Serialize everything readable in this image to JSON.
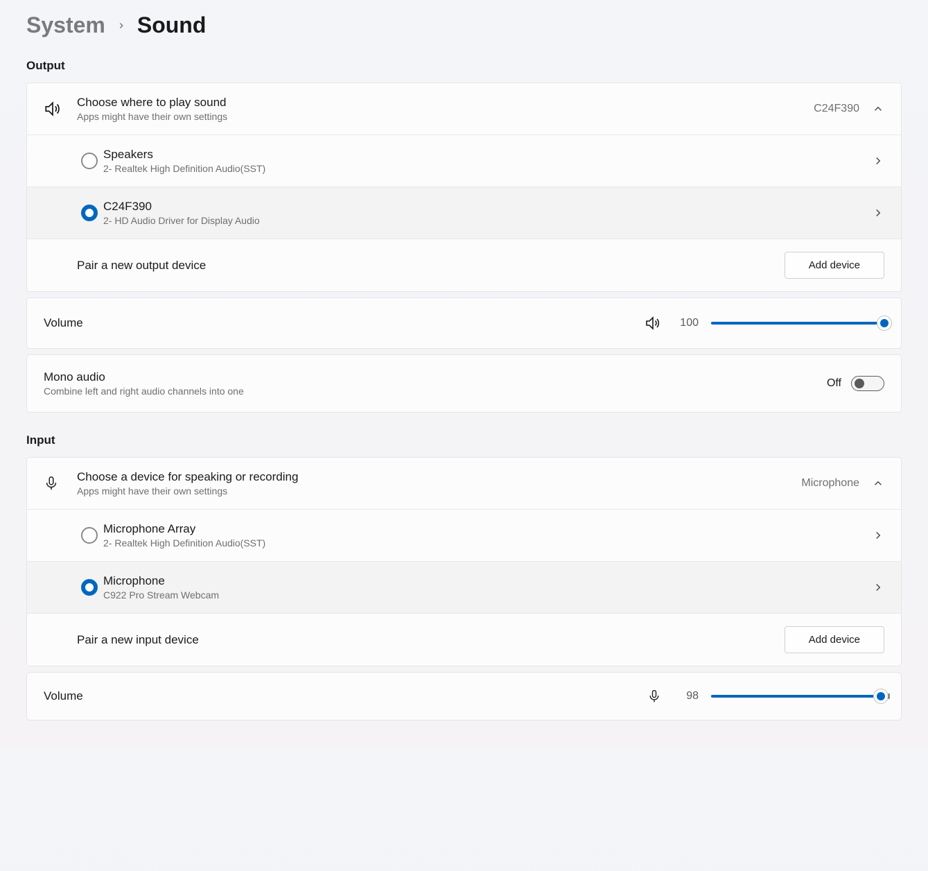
{
  "breadcrumb": {
    "parent": "System",
    "current": "Sound"
  },
  "colors": {
    "accent": "#0067c0",
    "text": "#1a1a1a",
    "text_muted": "#6f6f6f",
    "border": "#e5e5e5",
    "card_bg": "#fcfcfd",
    "selected_bg": "#f3f3f3",
    "page_bg": "#f3f5f9"
  },
  "output": {
    "heading": "Output",
    "choose": {
      "title": "Choose where to play sound",
      "subtitle": "Apps might have their own settings",
      "current": "C24F390"
    },
    "devices": [
      {
        "name": "Speakers",
        "detail": "2- Realtek High Definition Audio(SST)",
        "selected": false
      },
      {
        "name": "C24F390",
        "detail": "2- HD Audio Driver for Display Audio",
        "selected": true
      }
    ],
    "pair": {
      "label": "Pair a new output device",
      "button": "Add device"
    },
    "volume": {
      "label": "Volume",
      "value": 100,
      "min": 0,
      "max": 100
    },
    "mono": {
      "title": "Mono audio",
      "subtitle": "Combine left and right audio channels into one",
      "state_label": "Off",
      "on": false
    }
  },
  "input": {
    "heading": "Input",
    "choose": {
      "title": "Choose a device for speaking or recording",
      "subtitle": "Apps might have their own settings",
      "current": "Microphone"
    },
    "devices": [
      {
        "name": "Microphone Array",
        "detail": "2- Realtek High Definition Audio(SST)",
        "selected": false
      },
      {
        "name": "Microphone",
        "detail": "C922 Pro Stream Webcam",
        "selected": true
      }
    ],
    "pair": {
      "label": "Pair a new input device",
      "button": "Add device"
    },
    "volume": {
      "label": "Volume",
      "value": 98,
      "min": 0,
      "max": 100
    }
  }
}
